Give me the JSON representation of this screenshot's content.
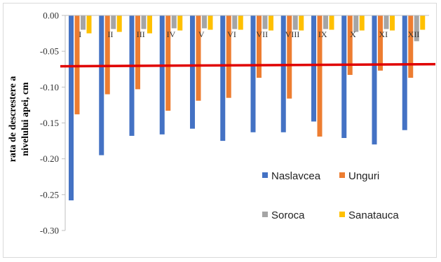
{
  "chart_data": {
    "type": "bar",
    "title": "",
    "xlabel": "",
    "ylabel": [
      "rata de descrestere a",
      "nivelului apei, cm"
    ],
    "ylim": [
      -0.3,
      0.0
    ],
    "yticks": [
      0.0,
      -0.05,
      -0.1,
      -0.15,
      -0.2,
      -0.25,
      -0.3
    ],
    "ytick_labels": [
      "0.00",
      "-0.05",
      "-0.10",
      "-0.15",
      "-0.20",
      "-0.25",
      "-0.30"
    ],
    "categories": [
      "I",
      "II",
      "III",
      "IV",
      "V",
      "VI",
      "VII",
      "VIII",
      "IX",
      "X",
      "XI",
      "XII"
    ],
    "series": [
      {
        "name": "Naslavcea",
        "color": "#4472c4",
        "values": [
          -0.258,
          -0.195,
          -0.168,
          -0.166,
          -0.158,
          -0.175,
          -0.163,
          -0.163,
          -0.148,
          -0.171,
          -0.18,
          -0.16
        ]
      },
      {
        "name": "Unguri",
        "color": "#ed7d31",
        "values": [
          -0.138,
          -0.11,
          -0.103,
          -0.133,
          -0.119,
          -0.115,
          -0.087,
          -0.116,
          -0.169,
          -0.083,
          -0.077,
          -0.087
        ]
      },
      {
        "name": "Soroca",
        "color": "#a5a5a5",
        "values": [
          -0.02,
          -0.019,
          -0.019,
          -0.018,
          -0.018,
          -0.019,
          -0.019,
          -0.02,
          -0.019,
          -0.023,
          -0.019,
          -0.036
        ]
      },
      {
        "name": "Sanatauca",
        "color": "#ffc000",
        "values": [
          -0.025,
          -0.023,
          -0.025,
          -0.021,
          -0.02,
          -0.02,
          -0.021,
          -0.021,
          -0.02,
          -0.021,
          -0.021,
          -0.02
        ]
      }
    ],
    "reference_line": {
      "value": -0.069,
      "color": "#e00000"
    },
    "grid": false,
    "legend_position": "bottom-right"
  }
}
